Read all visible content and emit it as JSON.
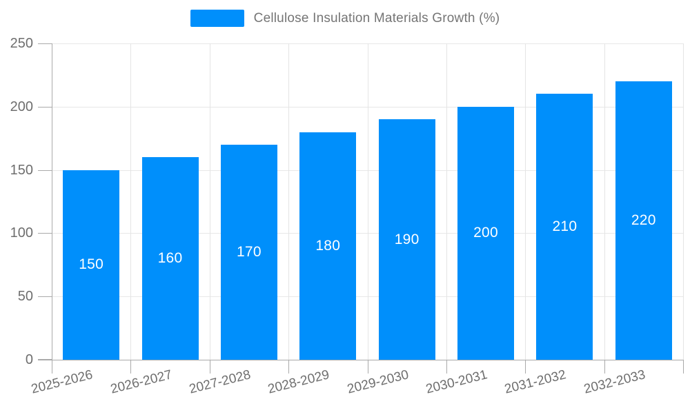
{
  "legend": {
    "label": "Cellulose Insulation Materials Growth (%)"
  },
  "chart_data": {
    "type": "bar",
    "title": "",
    "categories": [
      "2025-2026",
      "2026-2027",
      "2027-2028",
      "2028-2029",
      "2029-2030",
      "2030-2031",
      "2031-2032",
      "2032-2033"
    ],
    "series": [
      {
        "name": "Cellulose Insulation Materials Growth (%)",
        "values": [
          150,
          160,
          170,
          180,
          190,
          200,
          210,
          220
        ]
      }
    ],
    "value_labels": [
      "150",
      "160",
      "170",
      "180",
      "190",
      "200",
      "210",
      "220"
    ],
    "xlabel": "",
    "ylabel": "",
    "ylim": [
      0,
      250
    ],
    "yticks": [
      0,
      50,
      100,
      150,
      200,
      250
    ],
    "grid": "on",
    "legend_position": "top"
  },
  "colors": {
    "bar": "#008FFB",
    "value_label": "#ffffff",
    "grid_h": "#e7e7e7",
    "grid_v": "#e4e4e4",
    "axis": "#a9a9a9",
    "tick_label": "#6e6e6e",
    "legend_label": "#757575",
    "background": "#ffffff"
  }
}
